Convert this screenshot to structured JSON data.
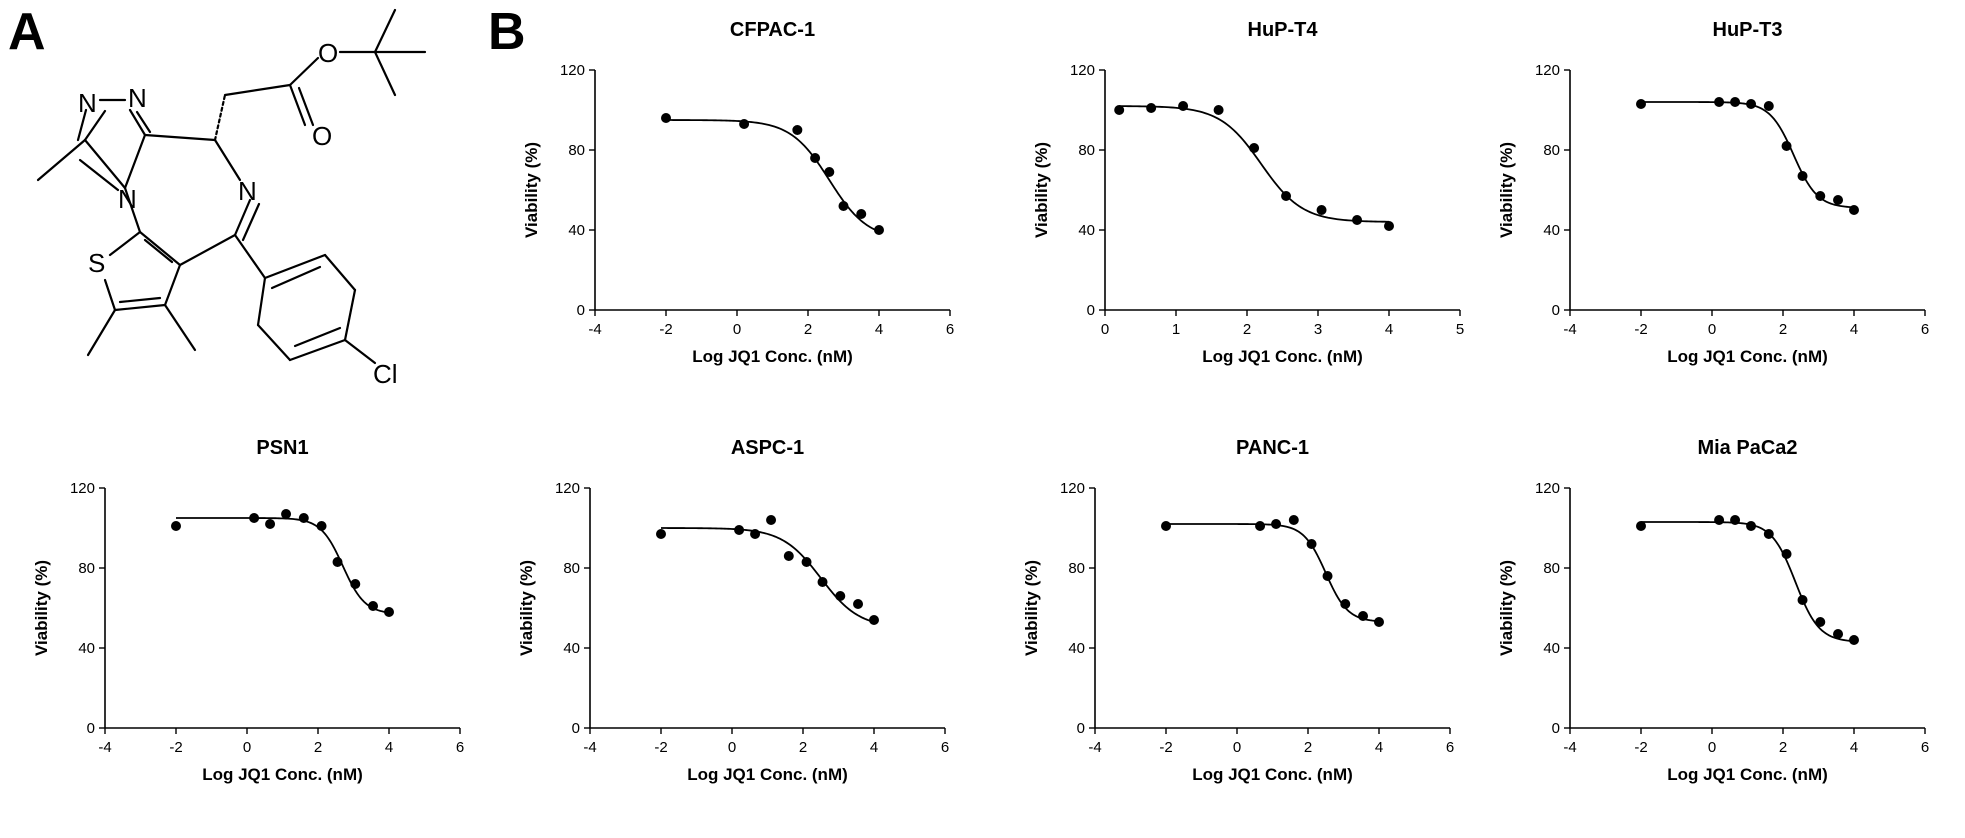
{
  "panels": {
    "a": "A",
    "b": "B"
  },
  "molecule": {
    "atoms": {
      "n1": "N",
      "n2": "N",
      "n3": "N",
      "n4": "N",
      "o1": "O",
      "o2": "O",
      "s1": "S",
      "cl": "Cl"
    }
  },
  "chart_data": [
    {
      "type": "scatter",
      "title": "CFPAC-1",
      "xlabel": "Log JQ1 Conc.  (nM)",
      "ylabel": "Viability (%)",
      "xlim": [
        -4,
        6
      ],
      "ylim": [
        0,
        120
      ],
      "xticks": [
        -4,
        -2,
        0,
        2,
        4,
        6
      ],
      "yticks": [
        0,
        40,
        80,
        120
      ],
      "x": [
        -2,
        0.2,
        1.7,
        2.2,
        2.6,
        3.0,
        3.5,
        4.0
      ],
      "y": [
        96,
        93,
        90,
        76,
        69,
        52,
        48,
        40
      ],
      "fit": {
        "bottom": 35,
        "top": 95,
        "logEC50": 2.6,
        "hill": 0.8
      }
    },
    {
      "type": "scatter",
      "title": "HuP-T4",
      "xlabel": "Log JQ1 Conc.  (nM)",
      "ylabel": "Viability (%)",
      "xlim": [
        0,
        5
      ],
      "ylim": [
        0,
        120
      ],
      "xticks": [
        0,
        1,
        2,
        3,
        4,
        5
      ],
      "yticks": [
        0,
        40,
        80,
        120
      ],
      "x": [
        0.2,
        0.65,
        1.1,
        1.6,
        2.1,
        2.55,
        3.05,
        3.55,
        4.0
      ],
      "y": [
        100,
        101,
        102,
        100,
        81,
        57,
        50,
        45,
        42
      ],
      "fit": {
        "bottom": 44,
        "top": 102,
        "logEC50": 2.2,
        "hill": 1.5
      }
    },
    {
      "type": "scatter",
      "title": "HuP-T3",
      "xlabel": "Log JQ1 Conc.  (nM)",
      "ylabel": "Viability (%)",
      "xlim": [
        -4,
        6
      ],
      "ylim": [
        0,
        120
      ],
      "xticks": [
        -4,
        -2,
        0,
        2,
        4,
        6
      ],
      "yticks": [
        0,
        40,
        80,
        120
      ],
      "x": [
        -2,
        0.2,
        0.65,
        1.1,
        1.6,
        2.1,
        2.55,
        3.05,
        3.55,
        4.0
      ],
      "y": [
        103,
        104,
        104,
        103,
        102,
        82,
        67,
        57,
        55,
        50
      ],
      "fit": {
        "bottom": 51,
        "top": 104,
        "logEC50": 2.3,
        "hill": 1.3
      }
    },
    {
      "type": "scatter",
      "title": "PSN1",
      "xlabel": "Log JQ1 Conc.  (nM)",
      "ylabel": "Viability (%)",
      "xlim": [
        -4,
        6
      ],
      "ylim": [
        0,
        120
      ],
      "xticks": [
        -4,
        -2,
        0,
        2,
        4,
        6
      ],
      "yticks": [
        0,
        40,
        80,
        120
      ],
      "x": [
        -2,
        0.2,
        0.65,
        1.1,
        1.6,
        2.1,
        2.55,
        3.05,
        3.55,
        4.0
      ],
      "y": [
        101,
        105,
        102,
        107,
        105,
        101,
        83,
        72,
        61,
        58
      ],
      "fit": {
        "bottom": 57,
        "top": 105,
        "logEC50": 2.7,
        "hill": 1.4
      }
    },
    {
      "type": "scatter",
      "title": "ASPC-1",
      "xlabel": "Log JQ1 Conc.  (nM)",
      "ylabel": "Viability (%)",
      "xlim": [
        -4,
        6
      ],
      "ylim": [
        0,
        120
      ],
      "xticks": [
        -4,
        -2,
        0,
        2,
        4,
        6
      ],
      "yticks": [
        0,
        40,
        80,
        120
      ],
      "x": [
        -2,
        0.2,
        0.65,
        1.1,
        1.6,
        2.1,
        2.55,
        3.05,
        3.55,
        4.0
      ],
      "y": [
        97,
        99,
        97,
        104,
        86,
        83,
        73,
        66,
        62,
        54
      ],
      "fit": {
        "bottom": 50,
        "top": 100,
        "logEC50": 2.5,
        "hill": 0.8
      }
    },
    {
      "type": "scatter",
      "title": "PANC-1",
      "xlabel": "Log JQ1 Conc.  (nM)",
      "ylabel": "Viability (%)",
      "xlim": [
        -4,
        6
      ],
      "ylim": [
        0,
        120
      ],
      "xticks": [
        -4,
        -2,
        0,
        2,
        4,
        6
      ],
      "yticks": [
        0,
        40,
        80,
        120
      ],
      "x": [
        -2,
        0.65,
        1.1,
        1.6,
        2.1,
        2.55,
        3.05,
        3.55,
        4.0
      ],
      "y": [
        101,
        101,
        102,
        104,
        92,
        76,
        62,
        56,
        53
      ],
      "fit": {
        "bottom": 53,
        "top": 102,
        "logEC50": 2.5,
        "hill": 1.4
      }
    },
    {
      "type": "scatter",
      "title": "Mia PaCa2",
      "xlabel": "Log JQ1 Conc.  (nM)",
      "ylabel": "Viability (%)",
      "xlim": [
        -4,
        6
      ],
      "ylim": [
        0,
        120
      ],
      "xticks": [
        -4,
        -2,
        0,
        2,
        4,
        6
      ],
      "yticks": [
        0,
        40,
        80,
        120
      ],
      "x": [
        -2,
        0.2,
        0.65,
        1.1,
        1.6,
        2.1,
        2.55,
        3.05,
        3.55,
        4.0
      ],
      "y": [
        101,
        104,
        104,
        101,
        97,
        87,
        64,
        53,
        47,
        44
      ],
      "fit": {
        "bottom": 43,
        "top": 103,
        "logEC50": 2.35,
        "hill": 1.3
      }
    }
  ]
}
